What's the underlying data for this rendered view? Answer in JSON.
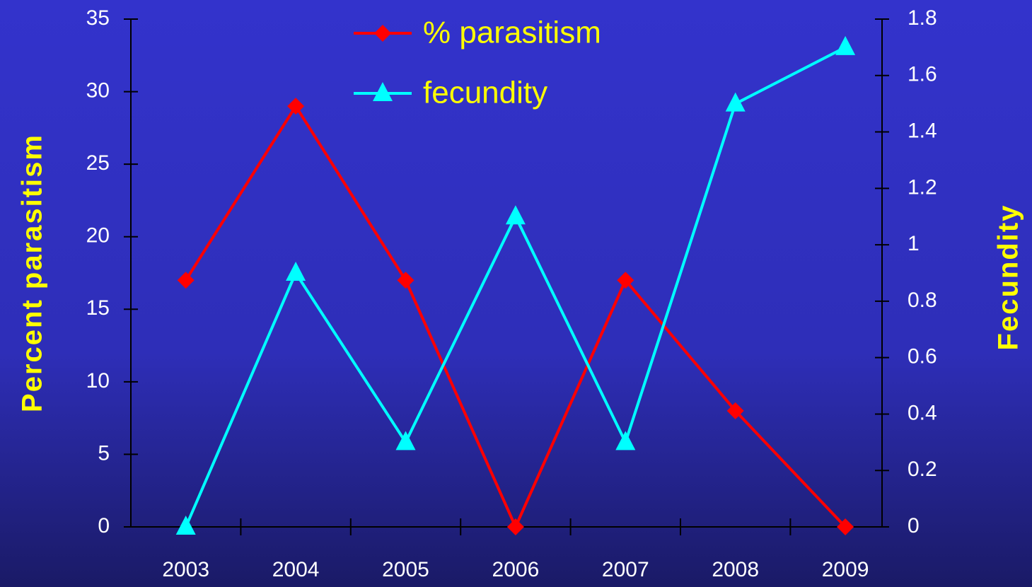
{
  "chart_data": {
    "type": "line",
    "categories": [
      "2003",
      "2004",
      "2005",
      "2006",
      "2007",
      "2008",
      "2009"
    ],
    "series": [
      {
        "name": "% parasitism",
        "color": "#ff0000",
        "marker": "diamond",
        "values": [
          17,
          29,
          17,
          0,
          17,
          8,
          0
        ]
      },
      {
        "name": "fecundity",
        "color": "#00ffff",
        "marker": "triangle",
        "axis": "y2",
        "values": [
          0,
          0.9,
          0.3,
          1.1,
          0.3,
          1.5,
          1.7
        ]
      }
    ],
    "ylabel": "Percent parasitism",
    "y2label": "Fecundity",
    "ylim": [
      0,
      35
    ],
    "yticks": [
      0,
      5,
      10,
      15,
      20,
      25,
      30,
      35
    ],
    "y2lim": [
      0,
      1.8
    ],
    "y2ticks": [
      0,
      0.2,
      0.4,
      0.6,
      0.8,
      1,
      1.2,
      1.4,
      1.6,
      1.8
    ],
    "grid": false
  }
}
